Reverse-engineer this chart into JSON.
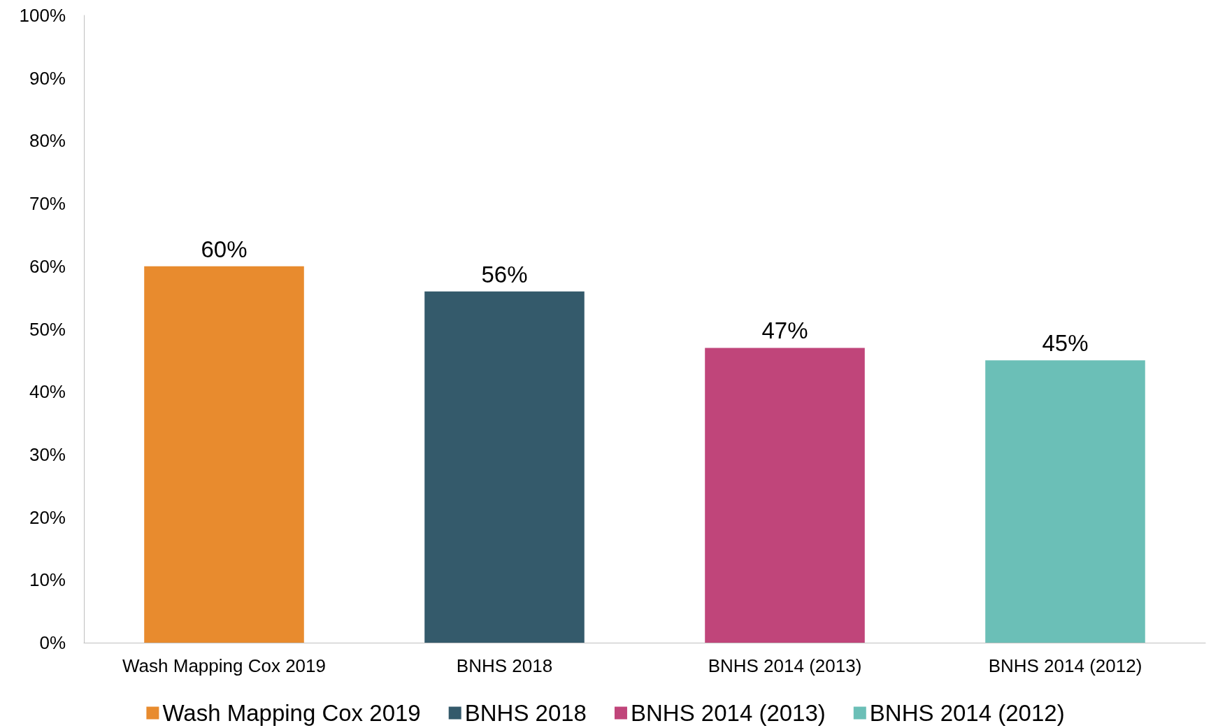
{
  "chart_data": {
    "type": "bar",
    "categories": [
      "Wash Mapping Cox 2019",
      "BNHS 2018",
      "BNHS 2014 (2013)",
      "BNHS 2014 (2012)"
    ],
    "series": [
      {
        "name": "Wash Mapping Cox 2019",
        "color": "#e88b2e",
        "values": [
          60,
          null,
          null,
          null
        ],
        "value_labels": [
          "60%",
          null,
          null,
          null
        ]
      },
      {
        "name": "BNHS 2018",
        "color": "#345a6b",
        "values": [
          null,
          56,
          null,
          null
        ],
        "value_labels": [
          null,
          "56%",
          null,
          null
        ]
      },
      {
        "name": "BNHS 2014 (2013)",
        "color": "#c0457a",
        "values": [
          null,
          null,
          47,
          null
        ],
        "value_labels": [
          null,
          null,
          "47%",
          null
        ]
      },
      {
        "name": "BNHS 2014 (2012)",
        "color": "#6bbfb7",
        "values": [
          null,
          null,
          null,
          45
        ],
        "value_labels": [
          null,
          null,
          null,
          "45%"
        ]
      }
    ],
    "ylim": [
      0,
      100
    ],
    "yticks": [
      {
        "value": 0,
        "label": "0%"
      },
      {
        "value": 10,
        "label": "10%"
      },
      {
        "value": 20,
        "label": "20%"
      },
      {
        "value": 30,
        "label": "30%"
      },
      {
        "value": 40,
        "label": "40%"
      },
      {
        "value": 50,
        "label": "50%"
      },
      {
        "value": 60,
        "label": "60%"
      },
      {
        "value": 70,
        "label": "70%"
      },
      {
        "value": 80,
        "label": "80%"
      },
      {
        "value": 90,
        "label": "90%"
      },
      {
        "value": 100,
        "label": "100%"
      }
    ],
    "grid": false,
    "legend": "bottom"
  }
}
